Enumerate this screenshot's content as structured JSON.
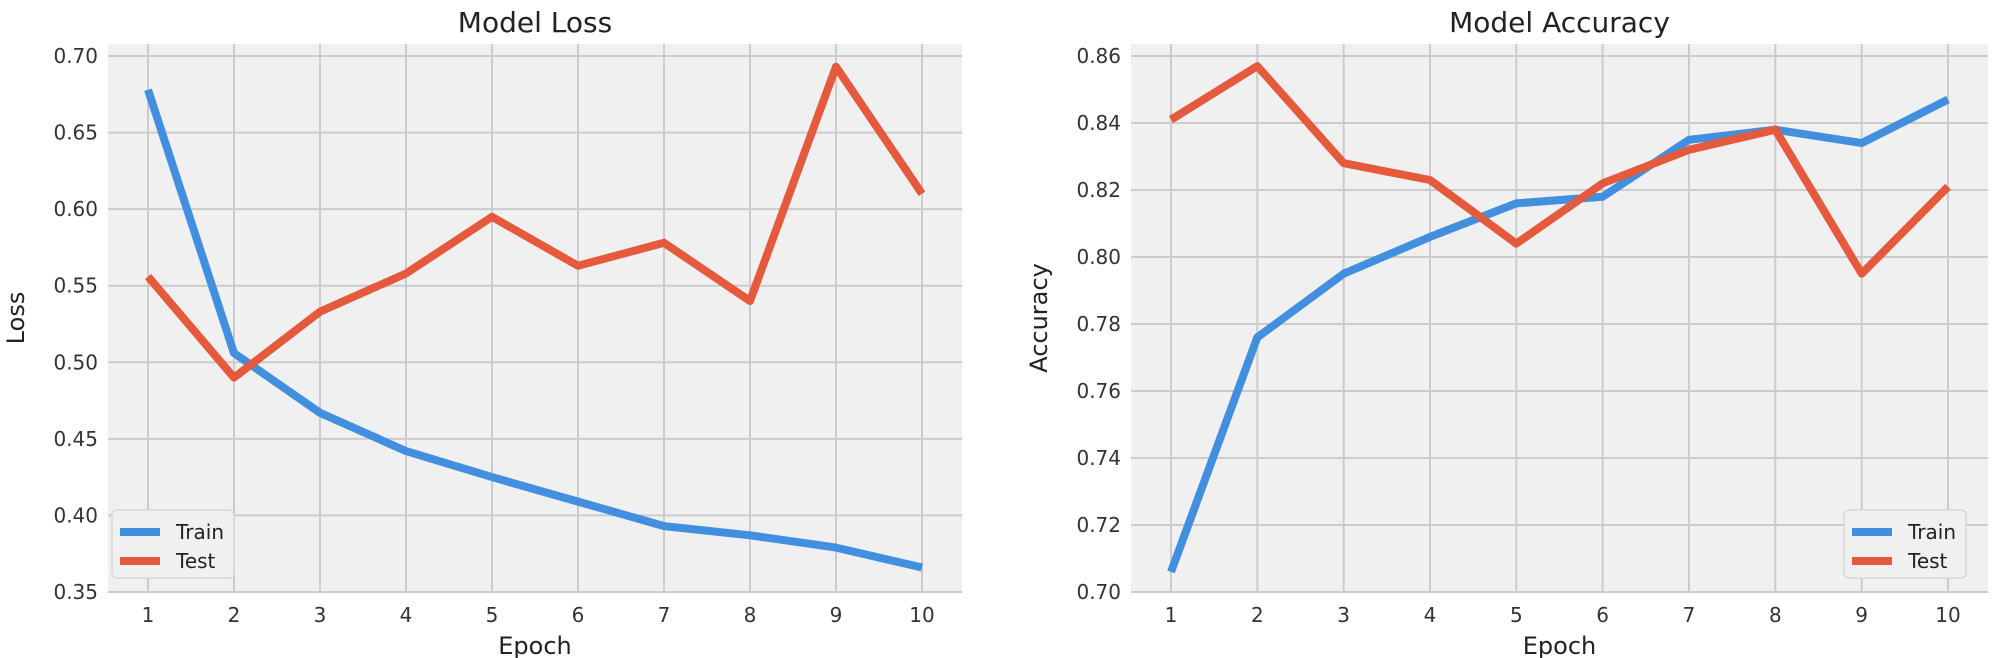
{
  "colors": {
    "train": "#418fde",
    "test": "#e5593c"
  },
  "chart_data": [
    {
      "type": "line",
      "title": "Model Loss",
      "xlabel": "Epoch",
      "ylabel": "Loss",
      "x": [
        1,
        2,
        3,
        4,
        5,
        6,
        7,
        8,
        9,
        10
      ],
      "xticks": [
        "1",
        "2",
        "3",
        "4",
        "5",
        "6",
        "7",
        "8",
        "9",
        "10"
      ],
      "ylim": [
        0.35,
        0.7
      ],
      "yticks": [
        "0.35",
        "0.40",
        "0.45",
        "0.50",
        "0.55",
        "0.60",
        "0.65",
        "0.70"
      ],
      "grid": true,
      "legend": "lower-left",
      "series": [
        {
          "name": "Train",
          "color": "#418fde",
          "values": [
            0.678,
            0.506,
            0.467,
            0.442,
            0.425,
            0.409,
            0.393,
            0.387,
            0.379,
            0.366
          ]
        },
        {
          "name": "Test",
          "color": "#e5593c",
          "values": [
            0.556,
            0.49,
            0.533,
            0.558,
            0.595,
            0.563,
            0.578,
            0.54,
            0.693,
            0.61
          ]
        }
      ]
    },
    {
      "type": "line",
      "title": "Model Accuracy",
      "xlabel": "Epoch",
      "ylabel": "Accuracy",
      "x": [
        1,
        2,
        3,
        4,
        5,
        6,
        7,
        8,
        9,
        10
      ],
      "xticks": [
        "1",
        "2",
        "3",
        "4",
        "5",
        "6",
        "7",
        "8",
        "9",
        "10"
      ],
      "ylim": [
        0.7,
        0.86
      ],
      "yticks": [
        "0.70",
        "0.72",
        "0.74",
        "0.76",
        "0.78",
        "0.80",
        "0.82",
        "0.84",
        "0.86"
      ],
      "grid": true,
      "legend": "lower-right",
      "series": [
        {
          "name": "Train",
          "color": "#418fde",
          "values": [
            0.706,
            0.776,
            0.795,
            0.806,
            0.816,
            0.818,
            0.835,
            0.838,
            0.834,
            0.847
          ]
        },
        {
          "name": "Test",
          "color": "#e5593c",
          "values": [
            0.841,
            0.857,
            0.828,
            0.823,
            0.804,
            0.822,
            0.832,
            0.838,
            0.795,
            0.821
          ]
        }
      ]
    }
  ]
}
